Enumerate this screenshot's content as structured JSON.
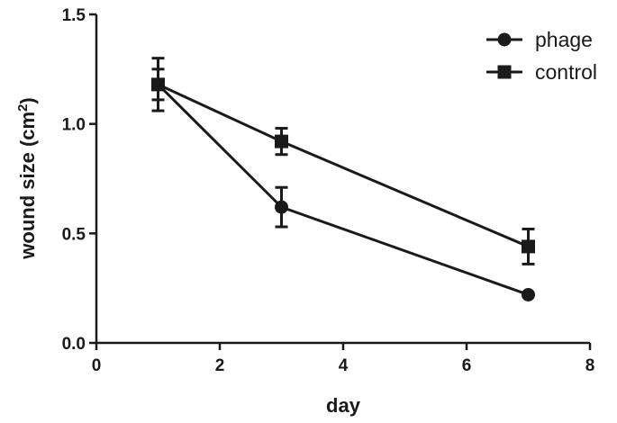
{
  "chart_data": {
    "type": "line",
    "title": "",
    "xlabel": "day",
    "ylabel": "wound size (cm",
    "ylabel_superscript": "2",
    "ylabel_suffix": ")",
    "xlim": [
      0,
      8
    ],
    "ylim": [
      0,
      1.5
    ],
    "xticks": [
      0,
      2,
      4,
      6,
      8
    ],
    "xtick_labels": [
      "0",
      "2",
      "4",
      "6",
      "8"
    ],
    "yticks": [
      0,
      0.5,
      1.0,
      1.5
    ],
    "ytick_labels": [
      "0.0",
      "0.5",
      "1.0",
      "1.5"
    ],
    "grid": false,
    "legend_position": "top-right",
    "series": [
      {
        "name": "phage",
        "marker": "circle",
        "x": [
          1,
          3,
          7
        ],
        "y": [
          1.18,
          0.62,
          0.22
        ],
        "err": [
          0.12,
          0.09,
          0.0
        ]
      },
      {
        "name": "control",
        "marker": "square",
        "x": [
          1,
          3,
          7
        ],
        "y": [
          1.18,
          0.92,
          0.44
        ],
        "err": [
          0.07,
          0.06,
          0.08
        ]
      }
    ]
  }
}
